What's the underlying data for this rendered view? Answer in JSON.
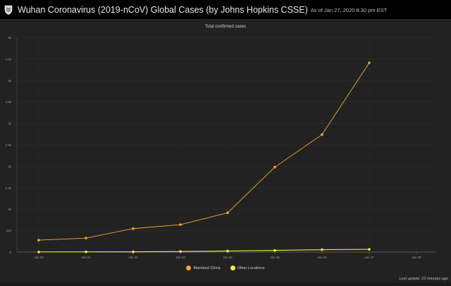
{
  "header": {
    "title": "Wuhan Coronavirus (2019-nCoV) Global Cases (by Johns Hopkins CSSE)",
    "as_of": "As of Jan 27, 2020 8:30 pm EST",
    "logo_icon": "shield-logo-icon"
  },
  "footer": {
    "last_update": "Last update: 23 minutes ago"
  },
  "colors": {
    "background": "#222222",
    "topbar": "#000000",
    "series_mainland": "#f0a92e",
    "series_other": "#f4ec3c",
    "grid": "#333333"
  },
  "chart_data": {
    "type": "line",
    "title": "Total confirmed cases",
    "xlabel": "",
    "ylabel": "",
    "categories": [
      "Jan 20",
      "Jan 21",
      "Jan 22",
      "Jan 23",
      "Jan 24",
      "Jan 25",
      "Jan 26",
      "Jan 27",
      "Jan 28"
    ],
    "ylim": [
      0,
      5000
    ],
    "yticks": [
      0,
      500,
      1000,
      1500,
      2000,
      2500,
      3000,
      3500,
      4000,
      4500,
      5000
    ],
    "ytick_labels": [
      "0",
      "500",
      "1k",
      "1.5k",
      "2k",
      "2.5k",
      "3k",
      "3.5k",
      "4k",
      "4.5k",
      "5k"
    ],
    "grid": true,
    "legend_position": "bottom-center",
    "series": [
      {
        "name": "Mainland China",
        "color": "#f0a92e",
        "values": [
          278,
          326,
          547,
          639,
          916,
          1979,
          2737,
          4409,
          null
        ]
      },
      {
        "name": "Other Locations",
        "color": "#f4ec3c",
        "values": [
          4,
          6,
          8,
          14,
          25,
          40,
          57,
          64,
          null
        ]
      }
    ]
  }
}
